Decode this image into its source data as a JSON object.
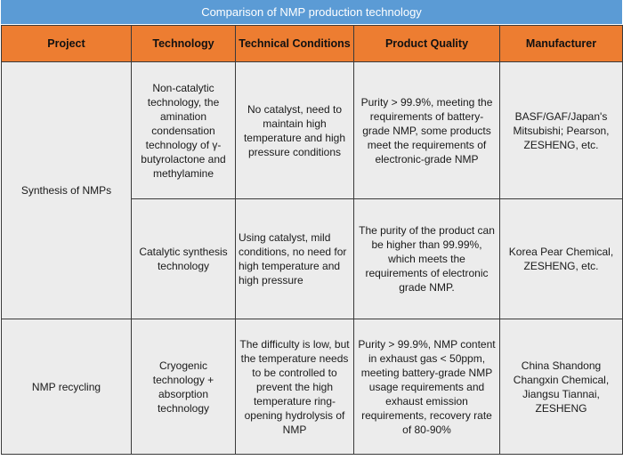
{
  "title": "Comparison of NMP production technology",
  "headers": {
    "project": "Project",
    "technology": "Technology",
    "conditions": "Technical Conditions",
    "quality": "Product Quality",
    "manufacturer": "Manufacturer"
  },
  "rows": [
    {
      "project": "Synthesis of NMPs",
      "technology": "Non-catalytic technology, the amination condensation technology of γ-butyrolactone and methylamine",
      "conditions": "No catalyst, need to maintain high temperature and high pressure conditions",
      "quality": "Purity > 99.9%, meeting the requirements of battery-grade NMP, some products meet the requirements of electronic-grade NMP",
      "manufacturer": "BASF/GAF/Japan's Mitsubishi; Pearson, ZESHENG, etc."
    },
    {
      "technology": "Catalytic synthesis technology",
      "conditions": "Using catalyst, mild conditions, no need for high temperature and high pressure",
      "quality": "The purity of the product can be higher than 99.99%, which meets the requirements of electronic grade NMP.",
      "manufacturer": "Korea Pear Chemical, ZESHENG, etc."
    },
    {
      "project": "NMP recycling",
      "technology": "Cryogenic technology + absorption technology",
      "conditions": "The difficulty is low, but the temperature needs to be controlled to prevent the high temperature ring-opening hydrolysis of NMP",
      "quality": "Purity > 99.9%, NMP content in exhaust gas < 50ppm, meeting battery-grade NMP usage requirements and exhaust emission requirements, recovery rate of 80-90%",
      "manufacturer": "China Shandong Changxin Chemical, Jiangsu Tiannai, ZESHENG"
    }
  ]
}
